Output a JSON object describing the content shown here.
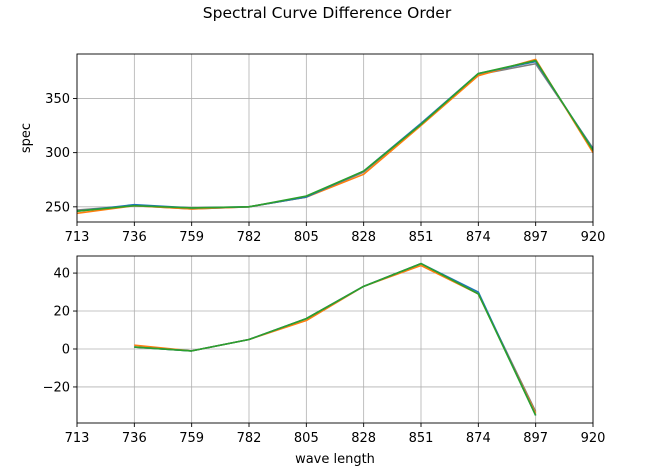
{
  "chart_data": {
    "title": "Spectral Curve Difference Order",
    "grid": true,
    "series_colors": [
      "#1f77b4",
      "#ff7f0e",
      "#2ca02c",
      "#7f7f7f"
    ],
    "subplots": [
      {
        "type": "line",
        "ylabel": "spec",
        "xlabel": "",
        "xlim": [
          713,
          920
        ],
        "ylim": [
          236,
          391
        ],
        "xticks": [
          "713",
          "736",
          "759",
          "782",
          "805",
          "828",
          "851",
          "874",
          "897",
          "920"
        ],
        "yticks": [
          "250",
          "300",
          "350"
        ],
        "x": [
          713,
          736,
          759,
          782,
          805,
          828,
          851,
          874,
          897,
          920
        ],
        "series": [
          {
            "color": "#7f7f7f",
            "values": [
              247,
              251,
              248,
              250,
              259,
              282,
              326,
              372,
              382,
              304
            ]
          },
          {
            "color": "#ff7f0e",
            "values": [
              244,
              251,
              248,
              250,
              259,
              280,
              325,
              371,
              386,
              300
            ]
          },
          {
            "color": "#1f77b4",
            "values": [
              246,
              252,
              249,
              250,
              259,
              283,
              327,
              373,
              384,
              303
            ]
          },
          {
            "color": "#2ca02c",
            "values": [
              246,
              251,
              249,
              250,
              260,
              283,
              326,
              373,
              385,
              302
            ]
          }
        ]
      },
      {
        "type": "line",
        "ylabel": "",
        "xlabel": "wave length",
        "xlim": [
          713,
          920
        ],
        "ylim": [
          -39,
          49
        ],
        "xticks": [
          "713",
          "736",
          "759",
          "782",
          "805",
          "828",
          "851",
          "874",
          "897",
          "920"
        ],
        "yticks": [
          "40",
          "20",
          "0",
          "−20"
        ],
        "x": [
          736,
          759,
          782,
          805,
          828,
          851,
          874,
          897
        ],
        "series": [
          {
            "color": "#7f7f7f",
            "values": [
              1,
              -1,
              5,
              16,
              33,
              45,
              29,
              -33
            ]
          },
          {
            "color": "#ff7f0e",
            "values": [
              2,
              -1,
              5,
              15,
              33,
              44,
              29,
              -34
            ]
          },
          {
            "color": "#1f77b4",
            "values": [
              1,
              -1,
              5,
              16,
              33,
              45,
              30,
              -35
            ]
          },
          {
            "color": "#2ca02c",
            "values": [
              1,
              -1,
              5,
              16,
              33,
              45,
              29,
              -35
            ]
          }
        ]
      }
    ]
  }
}
